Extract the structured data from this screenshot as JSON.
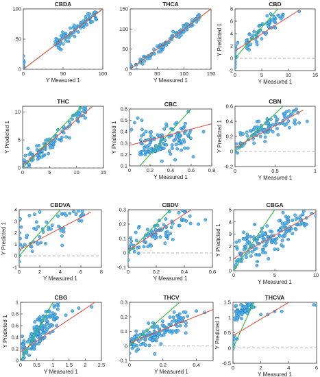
{
  "figure": {
    "colors": {
      "point_fill": "#4fb3e8",
      "point_stroke": "#1f6fb5",
      "target_line": "#2bbf3a",
      "fit_line": "#e0584a",
      "zero_line": "#9a9a9a"
    }
  },
  "chart_data": [
    {
      "type": "scatter",
      "title": "CBDA",
      "xlabel": "Y Measured 1",
      "ylabel": "",
      "xlim": [
        0,
        100
      ],
      "ylim": [
        0,
        100
      ],
      "xticks": [
        0,
        50,
        100
      ],
      "yticks": [
        0,
        50,
        100
      ],
      "xtick_labels": [
        "0",
        "50",
        "100"
      ],
      "ytick_labels": [
        "0",
        "50",
        "100"
      ],
      "fit_line": [
        [
          0,
          0
        ],
        [
          100,
          100
        ]
      ],
      "target_line": [
        [
          0,
          0
        ],
        [
          100,
          100
        ]
      ],
      "zero_line": 0,
      "cluster": {
        "x": [
          40,
          92
        ],
        "slope": 1.0,
        "intercept": 0,
        "noise": 6,
        "n": 80
      },
      "points": [
        [
          0,
          2
        ],
        [
          0,
          5
        ],
        [
          0,
          8
        ],
        [
          1,
          12
        ],
        [
          0,
          15
        ],
        [
          0,
          22
        ],
        [
          1,
          3
        ],
        [
          0,
          10
        ]
      ]
    },
    {
      "type": "scatter",
      "title": "THCA",
      "xlabel": "Y Measured 1",
      "ylabel": "",
      "xlim": [
        0,
        150
      ],
      "ylim": [
        0,
        150
      ],
      "xticks": [
        0,
        50,
        100,
        150
      ],
      "yticks": [
        0,
        50,
        100,
        150
      ],
      "xtick_labels": [
        "0",
        "50",
        "100",
        "150"
      ],
      "ytick_labels": [
        "0",
        "50",
        "100",
        "150"
      ],
      "fit_line": [
        [
          0,
          0
        ],
        [
          150,
          150
        ]
      ],
      "target_line": [
        [
          0,
          0
        ],
        [
          150,
          150
        ]
      ],
      "zero_line": 0,
      "cluster": {
        "x": [
          5,
          130
        ],
        "slope": 1.0,
        "intercept": 0,
        "noise": 6,
        "n": 90
      },
      "points": [
        [
          0,
          2
        ],
        [
          1,
          4
        ],
        [
          2,
          8
        ],
        [
          0,
          12
        ]
      ]
    },
    {
      "type": "scatter",
      "title": "CBD",
      "xlabel": "Y Measured 1",
      "ylabel": "Y Predicted 1",
      "xlim": [
        0,
        15
      ],
      "ylim": [
        -2,
        8
      ],
      "xticks": [
        0,
        5,
        10,
        15
      ],
      "yticks": [
        -2,
        0,
        2,
        4,
        6,
        8
      ],
      "xtick_labels": [
        "0",
        "5",
        "10",
        "15"
      ],
      "ytick_labels": [
        "-2",
        "0",
        "2",
        "4",
        "6",
        "8"
      ],
      "fit_line": [
        [
          0,
          1.2
        ],
        [
          12,
          7.8
        ]
      ],
      "target_line": [
        [
          0,
          0
        ],
        [
          8,
          8
        ]
      ],
      "zero_line": 0,
      "cluster": {
        "x": [
          2,
          9
        ],
        "slope": 0.7,
        "intercept": 1.0,
        "noise": 0.8,
        "n": 60
      },
      "points": [
        [
          0,
          -1.5
        ],
        [
          0,
          -1
        ],
        [
          0,
          -0.5
        ],
        [
          0,
          0
        ],
        [
          0,
          0.5
        ],
        [
          0,
          1
        ],
        [
          0.2,
          1.5
        ],
        [
          0.1,
          2
        ],
        [
          0.3,
          0.2
        ],
        [
          12,
          7.6
        ],
        [
          0.5,
          2.5
        ]
      ]
    },
    {
      "type": "scatter",
      "title": "THC",
      "xlabel": "",
      "ylabel": "Y Predicted 1",
      "xlim": [
        0,
        15
      ],
      "ylim": [
        0,
        11
      ],
      "xticks": [
        0,
        5,
        10,
        15
      ],
      "yticks": [
        0,
        5,
        10
      ],
      "xtick_labels": [
        "0",
        "5",
        "10",
        "15"
      ],
      "ytick_labels": [
        "0",
        "5",
        "10"
      ],
      "fit_line": [
        [
          0,
          0.5
        ],
        [
          13,
          11
        ]
      ],
      "target_line": [
        [
          0,
          0
        ],
        [
          11,
          11
        ]
      ],
      "zero_line": 0,
      "cluster": {
        "x": [
          0.5,
          12
        ],
        "slope": 0.85,
        "intercept": 0.3,
        "noise": 0.9,
        "n": 100
      },
      "points": [
        [
          0,
          0.2
        ],
        [
          0,
          0.6
        ],
        [
          0,
          1
        ],
        [
          0.3,
          1.4
        ],
        [
          0.2,
          0.1
        ]
      ]
    },
    {
      "type": "scatter",
      "title": "CBC",
      "xlabel": "Y Measured 1",
      "ylabel": "Y Predicted 1",
      "xlim": [
        0,
        0.8
      ],
      "ylim": [
        0.1,
        0.6
      ],
      "xticks": [
        0,
        0.2,
        0.4,
        0.6,
        0.8
      ],
      "yticks": [
        0.1,
        0.2,
        0.3,
        0.4,
        0.5,
        0.6
      ],
      "xtick_labels": [
        "0",
        "0.2",
        "0.4",
        "0.6",
        "0.8"
      ],
      "ytick_labels": [
        "0.1",
        "0.2",
        "0.3",
        "0.4",
        "0.5",
        "0.6"
      ],
      "fit_line": [
        [
          0,
          0.28
        ],
        [
          0.8,
          0.47
        ]
      ],
      "target_line": [
        [
          0.1,
          0.1
        ],
        [
          0.6,
          0.6
        ]
      ],
      "zero_line": null,
      "cluster": {
        "x": [
          0.1,
          0.6
        ],
        "slope": 0.3,
        "intercept": 0.22,
        "noise": 0.06,
        "n": 120
      },
      "points": [
        [
          0.05,
          0.48
        ],
        [
          0.08,
          0.52
        ],
        [
          0.12,
          0.5
        ],
        [
          0.02,
          0.42
        ],
        [
          0.72,
          0.4
        ],
        [
          0.62,
          0.18
        ]
      ]
    },
    {
      "type": "scatter",
      "title": "CBN",
      "xlabel": "Y Measured 1",
      "ylabel": "Y Predicted 1",
      "xlim": [
        0,
        1
      ],
      "ylim": [
        -0.2,
        0.6
      ],
      "xticks": [
        0,
        0.5,
        1
      ],
      "yticks": [
        -0.2,
        0,
        0.2,
        0.4,
        0.6
      ],
      "xtick_labels": [
        "0",
        "0.5",
        "1"
      ],
      "ytick_labels": [
        "-0.2",
        "0",
        "0.2",
        "0.4",
        "0.6"
      ],
      "fit_line": [
        [
          0,
          0.05
        ],
        [
          0.85,
          0.55
        ]
      ],
      "target_line": [
        [
          0,
          0
        ],
        [
          0.6,
          0.6
        ]
      ],
      "zero_line": 0,
      "cluster": {
        "x": [
          0.05,
          0.8
        ],
        "slope": 0.5,
        "intercept": 0.12,
        "noise": 0.06,
        "n": 90
      },
      "points": [
        [
          0,
          0
        ],
        [
          0.01,
          0.05
        ],
        [
          0.02,
          0.1
        ],
        [
          0.03,
          -0.02
        ],
        [
          0.8,
          0.38
        ],
        [
          0.9,
          0.4
        ]
      ]
    },
    {
      "type": "scatter",
      "title": "CBDVA",
      "xlabel": "Y Measured 1",
      "ylabel": "Y Predicted 1",
      "xlim": [
        0,
        8
      ],
      "ylim": [
        -1,
        4
      ],
      "xticks": [
        0,
        2,
        4,
        6,
        8
      ],
      "yticks": [
        -1,
        0,
        1,
        2,
        3,
        4
      ],
      "xtick_labels": [
        "0",
        "2",
        "4",
        "6",
        "8"
      ],
      "ytick_labels": [
        "-1",
        "0",
        "1",
        "2",
        "3",
        "4"
      ],
      "fit_line": [
        [
          0,
          0.5
        ],
        [
          7,
          3.8
        ]
      ],
      "target_line": [
        [
          0,
          0
        ],
        [
          4,
          4
        ]
      ],
      "zero_line": 0,
      "cluster": {
        "x": [
          0.5,
          6.5
        ],
        "slope": 0.5,
        "intercept": 0.8,
        "noise": 0.8,
        "n": 50
      },
      "points": [
        [
          0,
          -0.5
        ],
        [
          0,
          0
        ],
        [
          0,
          0.5
        ],
        [
          0.1,
          1
        ],
        [
          0.1,
          1.5
        ],
        [
          0,
          2
        ],
        [
          0.2,
          2.5
        ],
        [
          0.1,
          3.2
        ],
        [
          0.3,
          0.8
        ],
        [
          1,
          3.5
        ],
        [
          1.5,
          3.6
        ],
        [
          2,
          3.8
        ]
      ]
    },
    {
      "type": "scatter",
      "title": "CBDV",
      "xlabel": "Y Measured 1",
      "ylabel": "",
      "xlim": [
        0,
        0.6
      ],
      "ylim": [
        -0.1,
        0.3
      ],
      "xticks": [
        0,
        0.2,
        0.4,
        0.6
      ],
      "yticks": [
        -0.1,
        0,
        0.1,
        0.2,
        0.3
      ],
      "xtick_labels": [
        "0",
        "0.2",
        "0.4",
        "0.6"
      ],
      "ytick_labels": [
        "-0.1",
        "0",
        "0.1",
        "0.2",
        "0.3"
      ],
      "fit_line": [
        [
          0,
          0.02
        ],
        [
          0.45,
          0.3
        ]
      ],
      "target_line": [
        [
          0,
          0
        ],
        [
          0.3,
          0.3
        ]
      ],
      "zero_line": 0,
      "cluster": {
        "x": [
          0.01,
          0.45
        ],
        "slope": 0.55,
        "intercept": 0.03,
        "noise": 0.05,
        "n": 80
      },
      "points": [
        [
          0,
          -0.05
        ],
        [
          0,
          0
        ],
        [
          0,
          0.02
        ],
        [
          0.01,
          0.04
        ],
        [
          0.02,
          0.06
        ],
        [
          0.55,
          0.23
        ],
        [
          0.5,
          0.2
        ]
      ]
    },
    {
      "type": "scatter",
      "title": "CBGA",
      "xlabel": "Y Measured 1",
      "ylabel": "Y Predicted 1",
      "xlim": [
        0,
        10
      ],
      "ylim": [
        0,
        5
      ],
      "xticks": [
        0,
        5,
        10
      ],
      "yticks": [
        0,
        1,
        2,
        3,
        4,
        5
      ],
      "xtick_labels": [
        "0",
        "5",
        "10"
      ],
      "ytick_labels": [
        "0",
        "1",
        "2",
        "3",
        "4",
        "5"
      ],
      "fit_line": [
        [
          0,
          1.0
        ],
        [
          10,
          4.8
        ]
      ],
      "target_line": [
        [
          0,
          0
        ],
        [
          5,
          5
        ]
      ],
      "zero_line": null,
      "cluster": {
        "x": [
          0.3,
          9
        ],
        "slope": 0.4,
        "intercept": 1.0,
        "noise": 0.7,
        "n": 160
      },
      "points": [
        [
          0.2,
          0.3
        ],
        [
          0.3,
          0.5
        ],
        [
          0.5,
          0.8
        ],
        [
          9.5,
          4.7
        ],
        [
          10,
          4.5
        ]
      ]
    },
    {
      "type": "scatter",
      "title": "CBG",
      "xlabel": "Y Measured 1",
      "ylabel": "Y Predicted 1",
      "xlim": [
        0,
        2.5
      ],
      "ylim": [
        0,
        1
      ],
      "xticks": [
        0,
        0.5,
        1,
        1.5,
        2,
        2.5
      ],
      "yticks": [
        0,
        0.2,
        0.4,
        0.6,
        0.8,
        1
      ],
      "xtick_labels": [
        "0",
        "0.5",
        "1",
        "1.5",
        "2",
        "2.5"
      ],
      "ytick_labels": [
        "0",
        "0.2",
        "0.4",
        "0.6",
        "0.8",
        "1"
      ],
      "fit_line": [
        [
          0,
          0.15
        ],
        [
          2.3,
          1.0
        ]
      ],
      "target_line": [
        [
          0,
          0
        ],
        [
          1,
          1
        ]
      ],
      "zero_line": null,
      "cluster": {
        "x": [
          0.05,
          1.2
        ],
        "slope": 0.6,
        "intercept": 0.15,
        "noise": 0.12,
        "n": 150
      },
      "points": [
        [
          1.6,
          0.85
        ],
        [
          1.8,
          0.9
        ],
        [
          2.2,
          0.92
        ],
        [
          1.4,
          0.78
        ]
      ]
    },
    {
      "type": "scatter",
      "title": "THCV",
      "xlabel": "Y Measured 1",
      "ylabel": "",
      "xlim": [
        0,
        0.5
      ],
      "ylim": [
        -0.1,
        0.3
      ],
      "xticks": [
        0,
        0.2,
        0.4
      ],
      "yticks": [
        -0.1,
        0,
        0.1,
        0.2,
        0.3
      ],
      "xtick_labels": [
        "0",
        "0.2",
        "0.4"
      ],
      "ytick_labels": [
        "-0.1",
        "0",
        "0.1",
        "0.2",
        "0.3"
      ],
      "fit_line": [
        [
          0,
          0.02
        ],
        [
          0.5,
          0.25
        ]
      ],
      "target_line": [
        [
          0,
          0
        ],
        [
          0.3,
          0.3
        ]
      ],
      "zero_line": 0,
      "cluster": {
        "x": [
          0.01,
          0.35
        ],
        "slope": 0.45,
        "intercept": 0.02,
        "noise": 0.04,
        "n": 130
      },
      "points": [
        [
          0,
          -0.05
        ],
        [
          0,
          0.02
        ],
        [
          0.4,
          0.24
        ],
        [
          0.45,
          0.23
        ],
        [
          0.3,
          0.22
        ]
      ]
    },
    {
      "type": "scatter",
      "title": "THCVA",
      "xlabel": "Y Measured 1",
      "ylabel": "Y Predicted 1",
      "xlim": [
        0,
        6
      ],
      "ylim": [
        -0.5,
        1.5
      ],
      "xticks": [
        0,
        2,
        4,
        6
      ],
      "yticks": [
        -0.5,
        0,
        0.5,
        1,
        1.5
      ],
      "xtick_labels": [
        "0",
        "2",
        "4",
        "6"
      ],
      "ytick_labels": [
        "-0.5",
        "0",
        "0.5",
        "1",
        "1.5"
      ],
      "fit_line": [
        [
          0,
          0.4
        ],
        [
          4,
          1.5
        ]
      ],
      "target_line": [
        [
          0,
          0
        ],
        [
          1.5,
          1.5
        ]
      ],
      "zero_line": 0,
      "cluster": {
        "x": [
          0.1,
          1.5
        ],
        "slope": 0.2,
        "intercept": 1.1,
        "noise": 0.12,
        "n": 60
      },
      "points": [
        [
          0,
          0
        ],
        [
          0,
          0.2
        ],
        [
          0.1,
          0.3
        ],
        [
          0.1,
          0.4
        ],
        [
          0.05,
          0.1
        ],
        [
          2,
          1.1
        ],
        [
          2.5,
          1.1
        ],
        [
          3,
          1.2
        ],
        [
          3.5,
          1.2
        ],
        [
          6,
          1.4
        ],
        [
          5.8,
          1.42
        ],
        [
          0.3,
          0.3
        ]
      ]
    }
  ]
}
